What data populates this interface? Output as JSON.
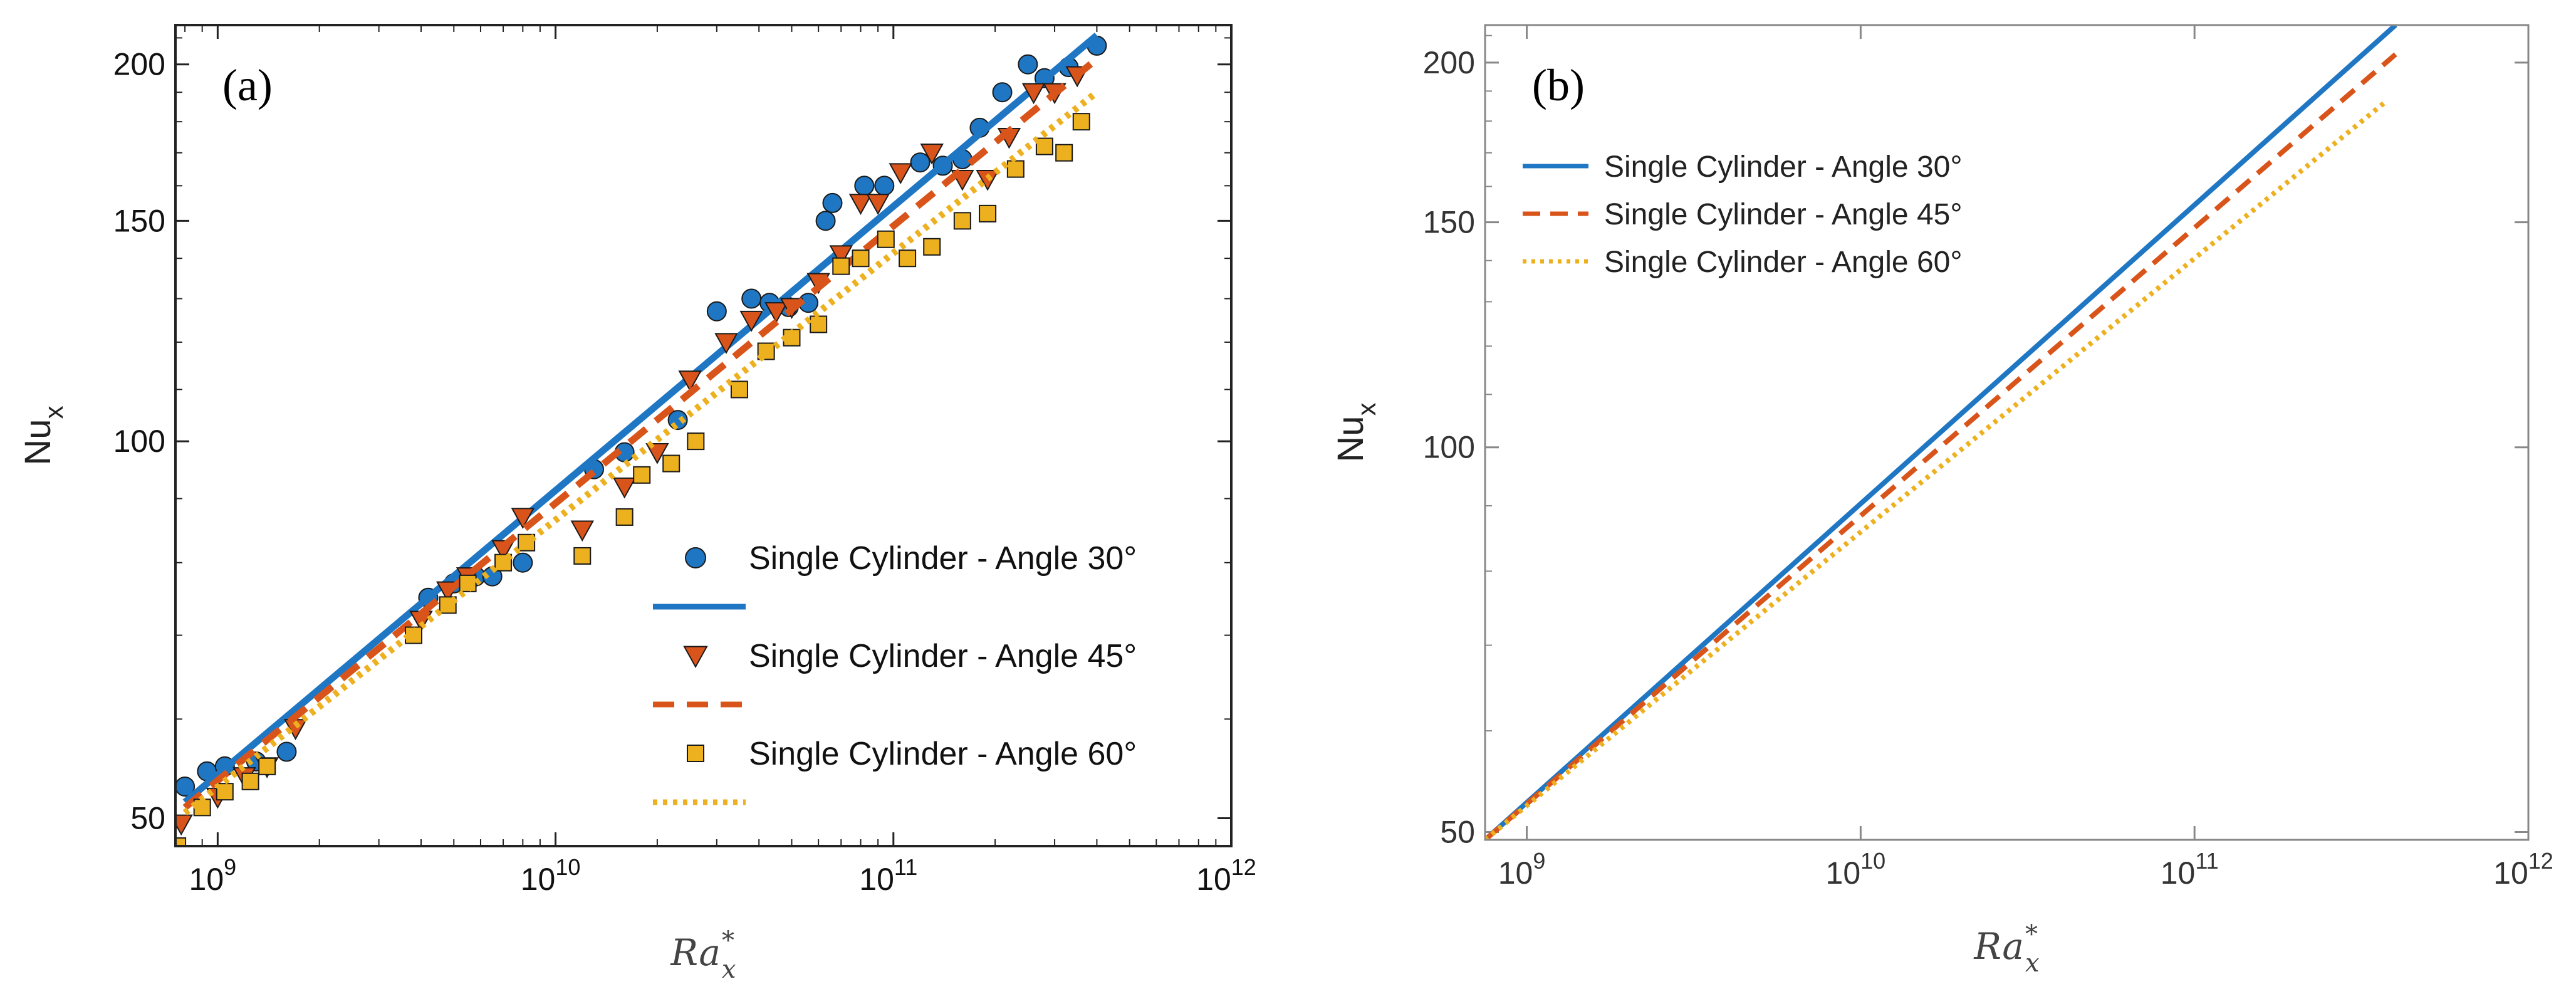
{
  "colors": {
    "angle30": "#1f77c4",
    "angle45": "#d9541a",
    "angle60": "#edb120"
  },
  "chart_data": [
    {
      "type": "scatter",
      "panel_label": "(a)",
      "xlabel": "Ra*x",
      "xlabel_main": "Ra",
      "xlabel_sub": "x",
      "xlabel_sup": "*",
      "ylabel": "Nux",
      "ylabel_main": "Nu",
      "ylabel_sub": "x",
      "x_scale": "log",
      "y_scale": "log",
      "xlim": [
        750000000.0,
        1000000000000.0
      ],
      "ylim": [
        47.5,
        215
      ],
      "x_ticks": [
        {
          "value": 1000000000.0,
          "base": "10",
          "exp": "9"
        },
        {
          "value": 10000000000.0,
          "base": "10",
          "exp": "10"
        },
        {
          "value": 100000000000.0,
          "base": "10",
          "exp": "11"
        },
        {
          "value": 1000000000000.0,
          "base": "10",
          "exp": "12"
        }
      ],
      "y_ticks": [
        {
          "value": 50,
          "label": "50"
        },
        {
          "value": 100,
          "label": "100"
        },
        {
          "value": 150,
          "label": "150"
        },
        {
          "value": 200,
          "label": "200"
        }
      ],
      "legend_position": "bottom-right",
      "series": [
        {
          "name": "Single Cylinder - Angle 30°",
          "kind": "markers",
          "marker": "circle",
          "color_key": "angle30",
          "x": [
            800000000.0,
            930000000.0,
            1050000000.0,
            1300000000.0,
            1600000000.0,
            4200000000.0,
            5000000000.0,
            5800000000.0,
            6500000000.0,
            8000000000.0,
            13000000000.0,
            16000000000.0,
            23000000000.0,
            30000000000.0,
            38000000000.0,
            43000000000.0,
            49000000000.0,
            56000000000.0,
            63000000000.0,
            66000000000.0,
            82000000000.0,
            94000000000.0,
            120000000000.0,
            140000000000.0,
            160000000000.0,
            180000000000.0,
            210000000000.0,
            250000000000.0,
            280000000000.0,
            330000000000.0,
            400000000000.0
          ],
          "y": [
            53,
            54.5,
            55,
            55.5,
            56.5,
            75,
            77,
            78,
            78,
            80,
            95,
            98,
            104,
            127,
            130,
            129,
            128,
            129,
            150,
            155,
            160,
            160,
            167,
            166,
            168,
            178,
            190,
            200,
            195,
            199,
            207
          ]
        },
        {
          "name": "",
          "kind": "line",
          "style": "solid",
          "color_key": "angle30",
          "x": [
            800000000.0,
            400000000000.0
          ],
          "y": [
            51.5,
            211
          ]
        },
        {
          "name": "Single Cylinder - Angle 45°",
          "kind": "markers",
          "marker": "triangle-down",
          "color_key": "angle45",
          "x": [
            780000000.0,
            1000000000.0,
            1200000000.0,
            1400000000.0,
            1700000000.0,
            4000000000.0,
            4800000000.0,
            5500000000.0,
            7000000000.0,
            8000000000.0,
            12000000000.0,
            16000000000.0,
            20000000000.0,
            25000000000.0,
            32000000000.0,
            38000000000.0,
            45000000000.0,
            50000000000.0,
            60000000000.0,
            70000000000.0,
            80000000000.0,
            90000000000.0,
            105000000000.0,
            130000000000.0,
            160000000000.0,
            190000000000.0,
            220000000000.0,
            260000000000.0,
            300000000000.0,
            350000000000.0
          ],
          "y": [
            49.5,
            52,
            54,
            55,
            59,
            72,
            76,
            78,
            82,
            87,
            85,
            92,
            98,
            112,
            120,
            125,
            127,
            128,
            134,
            141,
            155,
            155,
            164,
            170,
            162,
            162,
            175,
            190,
            190,
            196
          ]
        },
        {
          "name": "",
          "kind": "line",
          "style": "dashed",
          "color_key": "angle45",
          "x": [
            800000000.0,
            400000000000.0
          ],
          "y": [
            51.0,
            202
          ]
        },
        {
          "name": "Single Cylinder - Angle 60°",
          "kind": "markers",
          "marker": "square",
          "color_key": "angle60",
          "x": [
            760000000.0,
            900000000.0,
            1050000000.0,
            1250000000.0,
            1400000000.0,
            3800000000.0,
            4800000000.0,
            5500000000.0,
            7000000000.0,
            8200000000.0,
            12000000000.0,
            16000000000.0,
            18000000000.0,
            22000000000.0,
            26000000000.0,
            35000000000.0,
            42000000000.0,
            50000000000.0,
            60000000000.0,
            70000000000.0,
            80000000000.0,
            95000000000.0,
            110000000000.0,
            130000000000.0,
            160000000000.0,
            190000000000.0,
            230000000000.0,
            280000000000.0,
            320000000000.0,
            360000000000.0
          ],
          "y": [
            47.5,
            51,
            52.5,
            53.5,
            55,
            70,
            74,
            77,
            80,
            83,
            81,
            87,
            94,
            96,
            100,
            110,
            118,
            121,
            124,
            138,
            140,
            145,
            140,
            143,
            150,
            152,
            165,
            172,
            170,
            180
          ]
        },
        {
          "name": "",
          "kind": "line",
          "style": "dotted",
          "color_key": "angle60",
          "x": [
            800000000.0,
            400000000000.0
          ],
          "y": [
            50.5,
            190
          ]
        }
      ]
    },
    {
      "type": "line",
      "panel_label": "(b)",
      "xlabel": "Ra*x",
      "xlabel_main": "Ra",
      "xlabel_sub": "x",
      "xlabel_sup": "*",
      "ylabel": "Nux",
      "ylabel_main": "Nu",
      "ylabel_sub": "x",
      "x_scale": "log",
      "y_scale": "log",
      "xlim": [
        750000000.0,
        1000000000000.0
      ],
      "ylim": [
        49.3,
        214
      ],
      "x_ticks": [
        {
          "value": 1000000000.0,
          "base": "10",
          "exp": "9"
        },
        {
          "value": 10000000000.0,
          "base": "10",
          "exp": "10"
        },
        {
          "value": 100000000000.0,
          "base": "10",
          "exp": "11"
        },
        {
          "value": 1000000000000.0,
          "base": "10",
          "exp": "12"
        }
      ],
      "y_ticks": [
        {
          "value": 50,
          "label": "50"
        },
        {
          "value": 100,
          "label": "100"
        },
        {
          "value": 150,
          "label": "150"
        },
        {
          "value": 200,
          "label": "200"
        }
      ],
      "legend_position": "top-left",
      "series": [
        {
          "name": "Single Cylinder - Angle 30°",
          "kind": "line",
          "style": "solid",
          "color_key": "angle30",
          "x": [
            750000000.0,
            400000000000.0
          ],
          "y": [
            49.3,
            214
          ]
        },
        {
          "name": "Single Cylinder - Angle 45°",
          "kind": "line",
          "style": "dashed",
          "color_key": "angle45",
          "x": [
            750000000.0,
            400000000000.0
          ],
          "y": [
            49.3,
            203
          ]
        },
        {
          "name": "Single Cylinder - Angle 60°",
          "kind": "line",
          "style": "dotted",
          "color_key": "angle60",
          "x": [
            750000000.0,
            370000000000.0
          ],
          "y": [
            49.3,
            186
          ]
        }
      ]
    }
  ]
}
